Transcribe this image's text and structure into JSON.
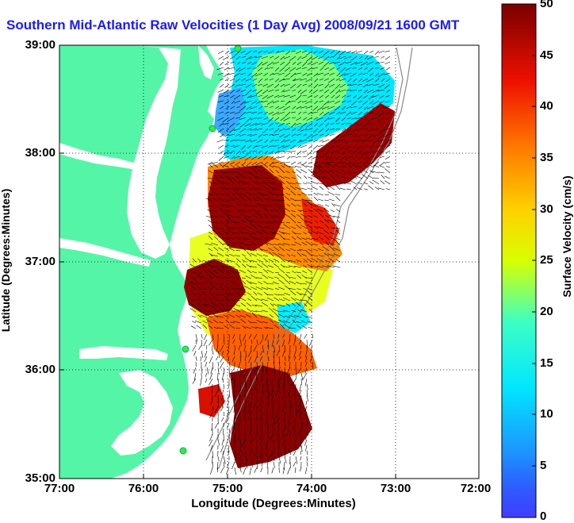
{
  "title": "Southern Mid-Atlantic Raw Velocities (1 Day Avg) 2008/09/21 1600 GMT",
  "x_axis": {
    "label": "Longitude (Degrees:Minutes)",
    "ticks": [
      "77:00",
      "76:00",
      "75:00",
      "74:00",
      "73:00",
      "72:00"
    ]
  },
  "y_axis": {
    "label": "Latitude (Degrees:Minutes)",
    "ticks": [
      "39:00",
      "38:00",
      "37:00",
      "36:00",
      "35:00"
    ]
  },
  "colorbar": {
    "label": "Surface Velocity (cm/s)",
    "ticks": [
      "50",
      "45",
      "40",
      "35",
      "30",
      "25",
      "20",
      "15",
      "10",
      "5",
      "0"
    ],
    "range": [
      0,
      50
    ],
    "colormap": "jet"
  },
  "colors": {
    "land": "#55f5a8",
    "title": "#1a1aff",
    "station": "#33ee33"
  },
  "map": {
    "region": "Southern Mid-Atlantic Bight",
    "lon_range": [
      -77,
      -72
    ],
    "lat_range": [
      35,
      39
    ],
    "grid": "dotted"
  }
}
